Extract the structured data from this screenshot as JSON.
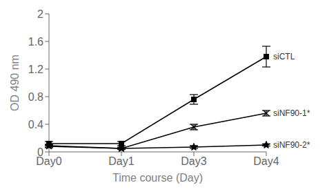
{
  "chart_data": {
    "type": "line",
    "x_label": "Time course (Day)",
    "y_label": "OD 490 nm",
    "categories": [
      "Day0",
      "Day1",
      "Day3",
      "Day4"
    ],
    "series": [
      {
        "name": "siCTL",
        "color": "#000000",
        "marker": "square",
        "line_style": "solid",
        "values": [
          0.12,
          0.12,
          0.76,
          1.38
        ],
        "errors": [
          0.03,
          0.03,
          0.07,
          0.15
        ]
      },
      {
        "name": "siNF90-1*",
        "color": "#000000",
        "marker": "x",
        "line_style": "solid",
        "values": [
          0.08,
          0.05,
          0.36,
          0.56
        ],
        "errors": [
          0.02,
          0.015,
          0.04,
          0.04
        ]
      },
      {
        "name": "siNF90-2*",
        "color": "#000000",
        "marker": "star",
        "line_style": "solid",
        "values": [
          0.09,
          0.05,
          0.07,
          0.1
        ],
        "errors": [
          0.02,
          0.01,
          0.02,
          0.015
        ]
      }
    ],
    "ylim": [
      0,
      2.0
    ],
    "yticks": [
      0,
      0.4,
      0.8,
      1.2,
      1.6,
      2.0
    ],
    "grid": false
  }
}
